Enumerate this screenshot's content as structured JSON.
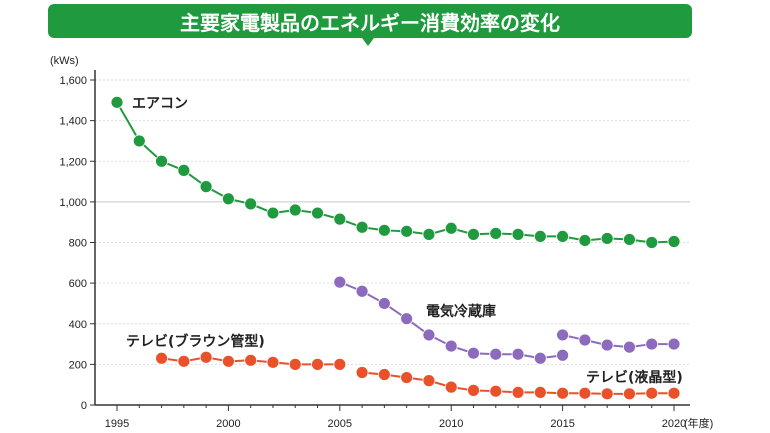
{
  "title": "主要家電製品のエネルギー消費効率の変化",
  "chart_data": {
    "type": "line",
    "title": "主要家電製品のエネルギー消費効率の変化",
    "ylabel": "(kWs)",
    "xlabel": "(年度)",
    "ylim": [
      0,
      1600
    ],
    "xlim": [
      1995,
      2020
    ],
    "yticks": [
      "0",
      "200",
      "400",
      "600",
      "800",
      "1,000",
      "1,200",
      "1,400",
      "1,600"
    ],
    "ytick_values": [
      0,
      200,
      400,
      600,
      800,
      1000,
      1200,
      1400,
      1600
    ],
    "xticks": [
      "1995",
      "2000",
      "2005",
      "2010",
      "2015",
      "2020"
    ],
    "xtick_values": [
      1995,
      2000,
      2005,
      2010,
      2015,
      2020
    ],
    "grid": true,
    "series": [
      {
        "name": "エアコン",
        "color": "#1f9a3e",
        "segments": [
          {
            "x": [
              1995,
              1996,
              1997,
              1998,
              1999,
              2000,
              2001,
              2002,
              2003,
              2004,
              2005,
              2006,
              2007,
              2008,
              2009,
              2010,
              2011,
              2012,
              2013,
              2014,
              2015,
              2016,
              2017,
              2018,
              2019,
              2020
            ],
            "y": [
              1490,
              1300,
              1200,
              1155,
              1075,
              1015,
              990,
              945,
              960,
              945,
              915,
              875,
              860,
              855,
              840,
              870,
              840,
              845,
              840,
              830,
              830,
              810,
              820,
              815,
              800,
              805
            ]
          }
        ]
      },
      {
        "name": "電気冷蔵庫",
        "color": "#8c6bbf",
        "segments": [
          {
            "x": [
              2005,
              2006,
              2007,
              2008,
              2009,
              2010,
              2011,
              2012,
              2013,
              2014,
              2015
            ],
            "y": [
              605,
              560,
              500,
              425,
              345,
              290,
              255,
              250,
              250,
              230,
              245
            ]
          },
          {
            "x": [
              2015,
              2016,
              2017,
              2018,
              2019,
              2020
            ],
            "y": [
              345,
              320,
              295,
              285,
              300,
              300
            ]
          }
        ]
      },
      {
        "name": "テレビ(ブラウン管型)",
        "color": "#e8512a",
        "segments": [
          {
            "x": [
              1997,
              1998,
              1999,
              2000,
              2001,
              2002,
              2003,
              2004,
              2005
            ],
            "y": [
              230,
              215,
              235,
              215,
              220,
              210,
              200,
              200,
              200
            ]
          }
        ]
      },
      {
        "name": "テレビ(液晶型)",
        "color": "#e8512a",
        "segments": [
          {
            "x": [
              2006,
              2007,
              2008,
              2009,
              2010,
              2011,
              2012,
              2013,
              2014,
              2015,
              2016,
              2017,
              2018,
              2019,
              2020
            ],
            "y": [
              160,
              150,
              135,
              120,
              88,
              72,
              68,
              62,
              62,
              58,
              58,
              55,
              55,
              58,
              58
            ]
          }
        ]
      }
    ]
  }
}
